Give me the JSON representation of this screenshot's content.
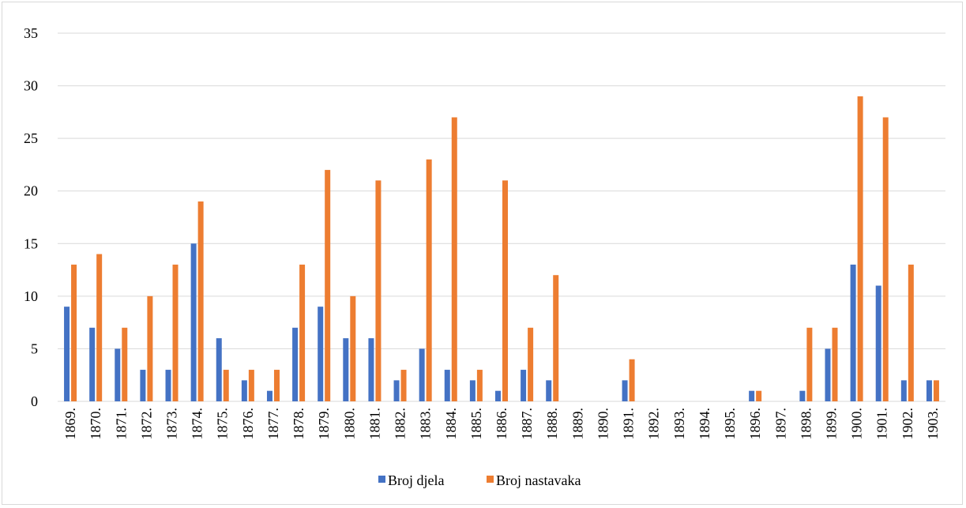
{
  "chart_data": {
    "type": "bar",
    "title": "",
    "xlabel": "",
    "ylabel": "",
    "ylim": [
      0,
      35
    ],
    "yticks": [
      0,
      5,
      10,
      15,
      20,
      25,
      30,
      35
    ],
    "grid": true,
    "legend_position": "bottom",
    "categories": [
      "1869.",
      "1870.",
      "1871.",
      "1872.",
      "1873.",
      "1874.",
      "1875.",
      "1876.",
      "1877.",
      "1878.",
      "1879.",
      "1880.",
      "1881.",
      "1882.",
      "1883.",
      "1884.",
      "1885.",
      "1886.",
      "1887.",
      "1888.",
      "1889.",
      "1890.",
      "1891.",
      "1892.",
      "1893.",
      "1894.",
      "1895.",
      "1896.",
      "1897.",
      "1898.",
      "1899.",
      "1900.",
      "1901.",
      "1902.",
      "1903."
    ],
    "series": [
      {
        "name": "Broj djela",
        "color": "#4472c4",
        "values": [
          9,
          7,
          5,
          3,
          3,
          15,
          6,
          2,
          1,
          7,
          9,
          6,
          6,
          2,
          5,
          3,
          2,
          1,
          3,
          2,
          0,
          0,
          2,
          0,
          0,
          0,
          0,
          1,
          0,
          1,
          5,
          13,
          11,
          2,
          2
        ]
      },
      {
        "name": "Broj nastavaka",
        "color": "#ed7d31",
        "values": [
          13,
          14,
          7,
          10,
          13,
          19,
          3,
          3,
          3,
          13,
          22,
          10,
          21,
          3,
          23,
          27,
          3,
          21,
          7,
          12,
          0,
          0,
          4,
          0,
          0,
          0,
          0,
          1,
          0,
          7,
          7,
          29,
          27,
          13,
          2
        ]
      }
    ]
  }
}
